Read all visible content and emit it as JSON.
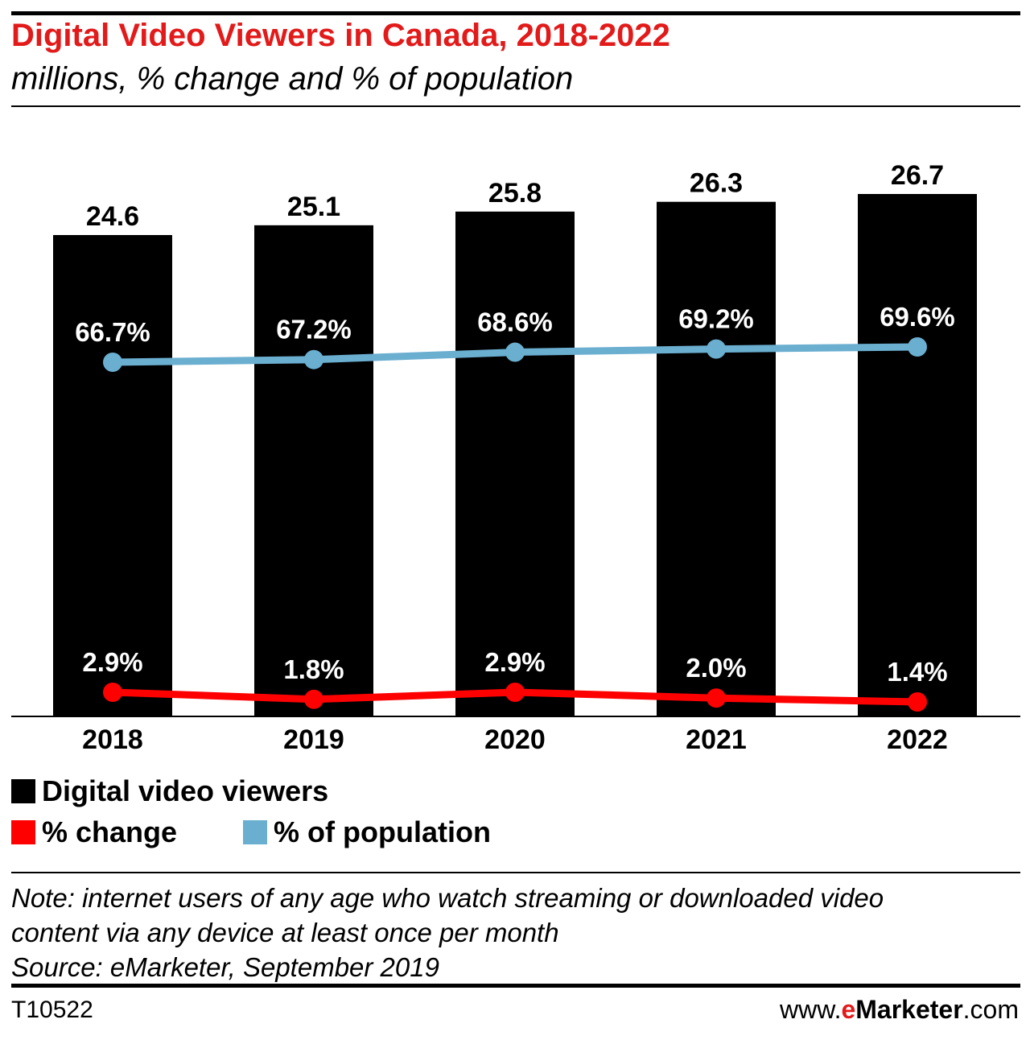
{
  "title": "Digital Video Viewers in Canada, 2018-2022",
  "subtitle": "millions, % change and % of population",
  "chart_data": {
    "type": "bar",
    "categories": [
      "2018",
      "2019",
      "2020",
      "2021",
      "2022"
    ],
    "series": [
      {
        "name": "Digital video viewers",
        "type": "bar",
        "values": [
          24.6,
          25.1,
          25.8,
          26.3,
          26.7
        ],
        "labels": [
          "24.6",
          "25.1",
          "25.8",
          "26.3",
          "26.7"
        ],
        "color": "#000000"
      },
      {
        "name": "% of population",
        "type": "line",
        "values": [
          66.7,
          67.2,
          68.6,
          69.2,
          69.6
        ],
        "labels": [
          "66.7%",
          "67.2%",
          "68.6%",
          "69.2%",
          "69.6%"
        ],
        "color": "#6aaed0"
      },
      {
        "name": "% change",
        "type": "line",
        "values": [
          2.9,
          1.8,
          2.9,
          2.0,
          1.4
        ],
        "labels": [
          "2.9%",
          "1.8%",
          "2.9%",
          "2.0%",
          "1.4%"
        ],
        "color": "#ff0000"
      }
    ],
    "legend": [
      "Digital video viewers",
      "% change",
      "% of population"
    ],
    "legend_position": "bottom",
    "grid": false
  },
  "legend": {
    "viewers": "Digital video viewers",
    "change": "% change",
    "population": "% of population"
  },
  "note": {
    "line1": "Note: internet users of any age who watch streaming or downloaded video",
    "line2": "content via any device at least once per month",
    "source": "Source: eMarketer, September 2019"
  },
  "footer": {
    "chart_id": "T10522",
    "brand_prefix": "www.",
    "brand_e": "e",
    "brand_name": "Marketer",
    "brand_suffix": ".com"
  },
  "colors": {
    "title": "#e21a1a",
    "bar": "#000000",
    "population_line": "#6aaed0",
    "change_line": "#ff0000"
  }
}
